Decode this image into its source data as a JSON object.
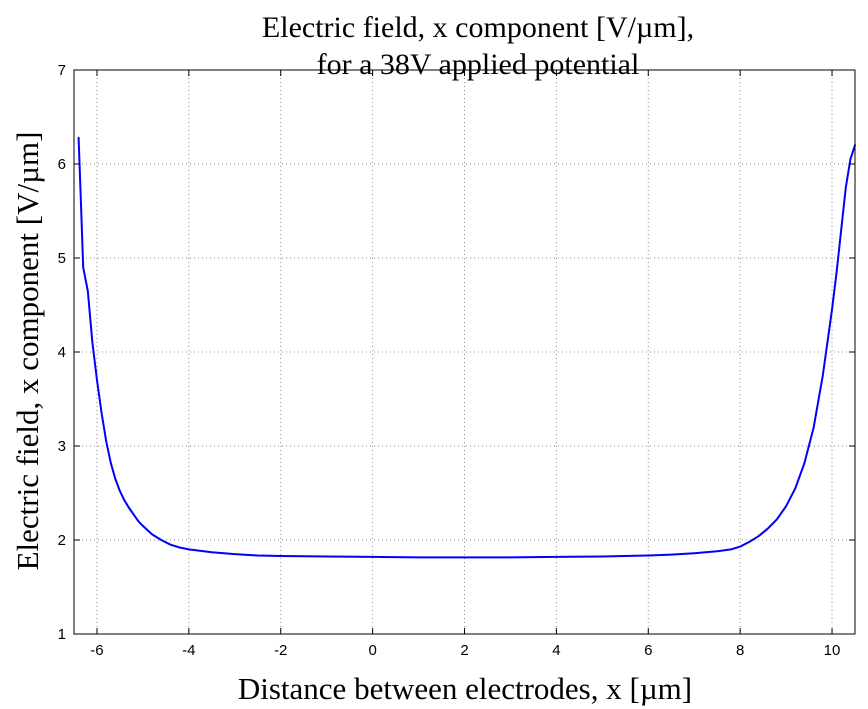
{
  "chart_data": {
    "type": "line",
    "title_lines": [
      "Electric field, x component [V/µm],",
      "for a 38V applied potential"
    ],
    "xlabel": "Distance between electrodes, x [µm]",
    "ylabel": "Electric field, x component [V/µm]",
    "xlim": [
      -6.5,
      10.5
    ],
    "ylim": [
      1,
      7
    ],
    "xticks": [
      -6,
      -4,
      -2,
      0,
      2,
      4,
      6,
      8,
      10
    ],
    "yticks": [
      1,
      2,
      3,
      4,
      5,
      6,
      7
    ],
    "grid": true,
    "line_color": "#0000ff",
    "series": [
      {
        "x": [
          -6.4,
          -6.35,
          -6.3,
          -6.2,
          -6.1,
          -6.0,
          -5.9,
          -5.8,
          -5.7,
          -5.6,
          -5.5,
          -5.4,
          -5.3,
          -5.2,
          -5.1,
          -5.0,
          -4.8,
          -4.6,
          -4.4,
          -4.2,
          -4.0,
          -3.5,
          -3.0,
          -2.5,
          -2.0,
          -1.0,
          0.0,
          1.0,
          2.0,
          3.0,
          4.0,
          5.0,
          6.0,
          6.5,
          7.0,
          7.5,
          7.8,
          8.0,
          8.2,
          8.4,
          8.6,
          8.8,
          9.0,
          9.2,
          9.4,
          9.6,
          9.8,
          10.0,
          10.1,
          10.2,
          10.3,
          10.4,
          10.5
        ],
        "y": [
          6.28,
          5.6,
          4.9,
          4.65,
          4.1,
          3.7,
          3.35,
          3.05,
          2.82,
          2.65,
          2.52,
          2.42,
          2.34,
          2.27,
          2.2,
          2.15,
          2.06,
          2.0,
          1.95,
          1.92,
          1.9,
          1.87,
          1.85,
          1.835,
          1.83,
          1.825,
          1.82,
          1.815,
          1.815,
          1.815,
          1.82,
          1.825,
          1.835,
          1.845,
          1.86,
          1.88,
          1.9,
          1.93,
          1.98,
          2.04,
          2.12,
          2.22,
          2.36,
          2.55,
          2.82,
          3.2,
          3.75,
          4.45,
          4.85,
          5.3,
          5.75,
          6.05,
          6.2
        ]
      }
    ]
  }
}
